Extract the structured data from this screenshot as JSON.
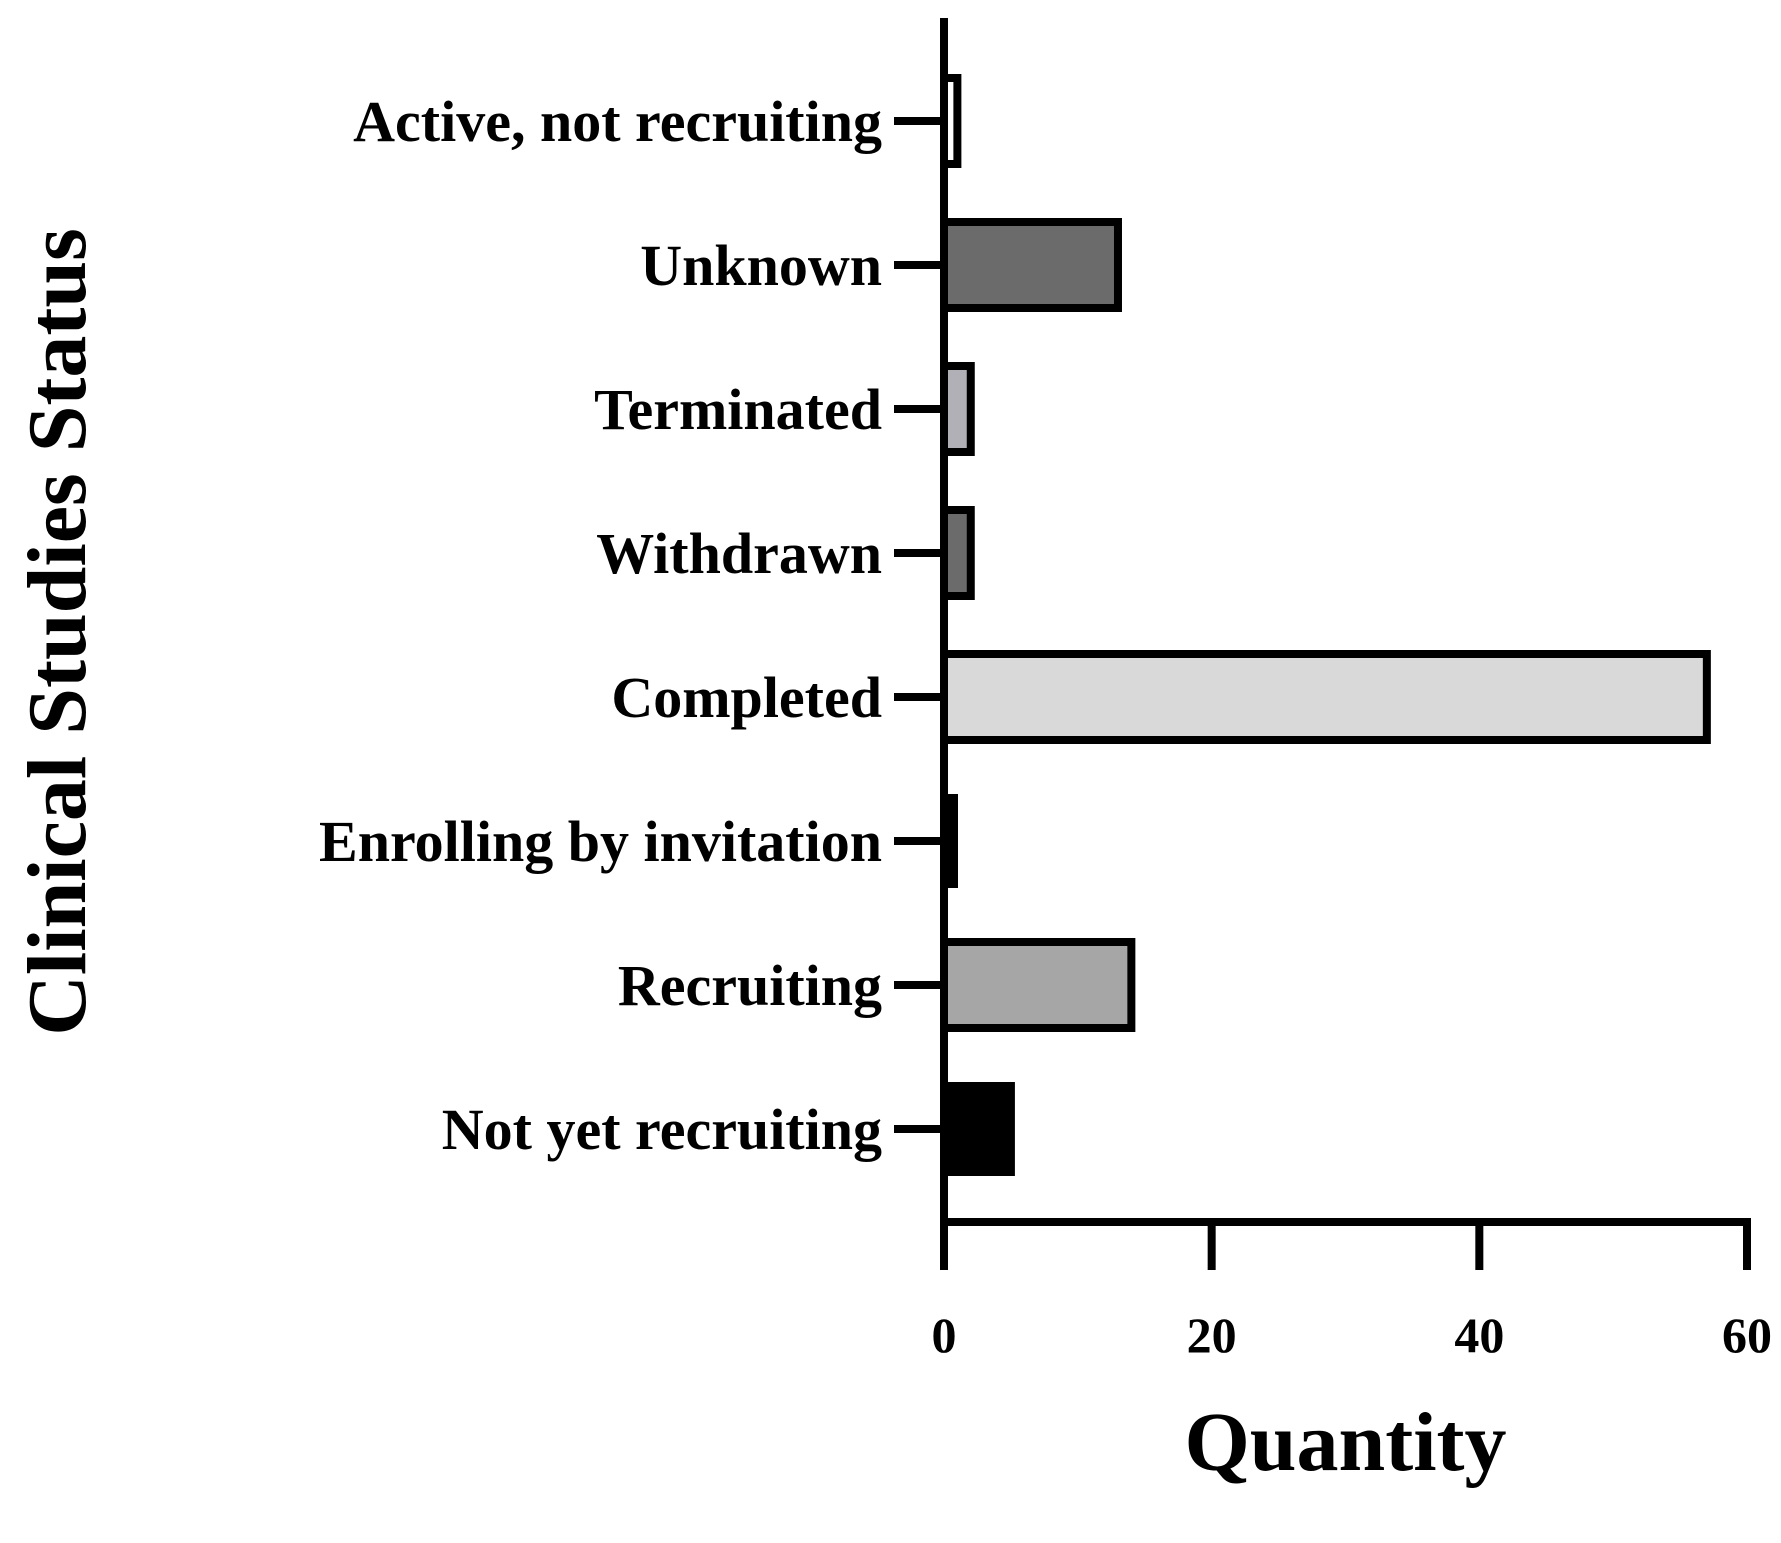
{
  "chart_data": {
    "type": "bar",
    "orientation": "horizontal",
    "title": "",
    "xlabel": "Quantity",
    "ylabel": "Clinical Studies Status",
    "xlim": [
      0,
      60
    ],
    "xticks": [
      0,
      20,
      40,
      60
    ],
    "grid": false,
    "legend": "none",
    "categories": [
      "Active, not recruiting",
      "Unknown",
      "Terminated",
      "Withdrawn",
      "Completed",
      "Enrolling by invitation",
      "Recruiting",
      "Not yet recruiting"
    ],
    "values": [
      1,
      13,
      2,
      2,
      57,
      0,
      14,
      5
    ],
    "colors": [
      "#ffffff",
      "#6b6b6b",
      "#b0b0b6",
      "#6b6b6b",
      "#d9d9d9",
      "#000000",
      "#a6a6a6",
      "#000000"
    ]
  }
}
